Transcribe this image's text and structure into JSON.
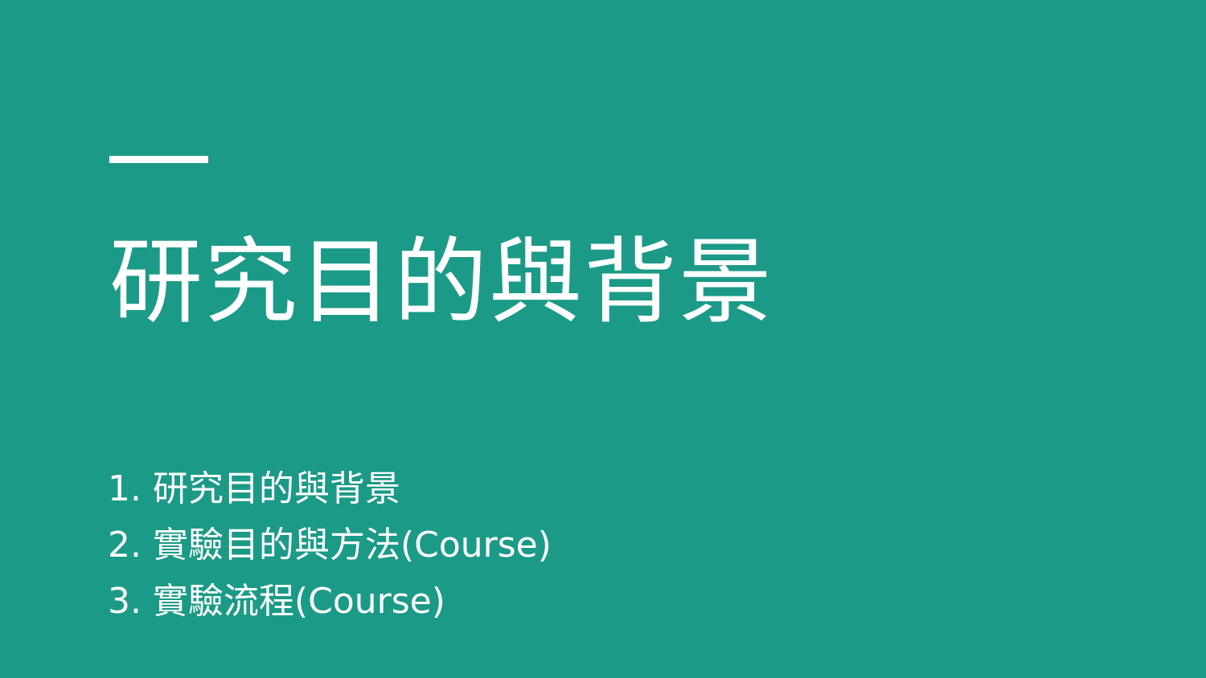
{
  "theme": {
    "background_color": "#1b9a87",
    "text_color": "#ffffff"
  },
  "slide": {
    "title": "研究目的與背景",
    "agenda": [
      "1. 研究目的與背景",
      "2. 實驗目的與方法(Course)",
      "3. 實驗流程(Course)"
    ]
  }
}
